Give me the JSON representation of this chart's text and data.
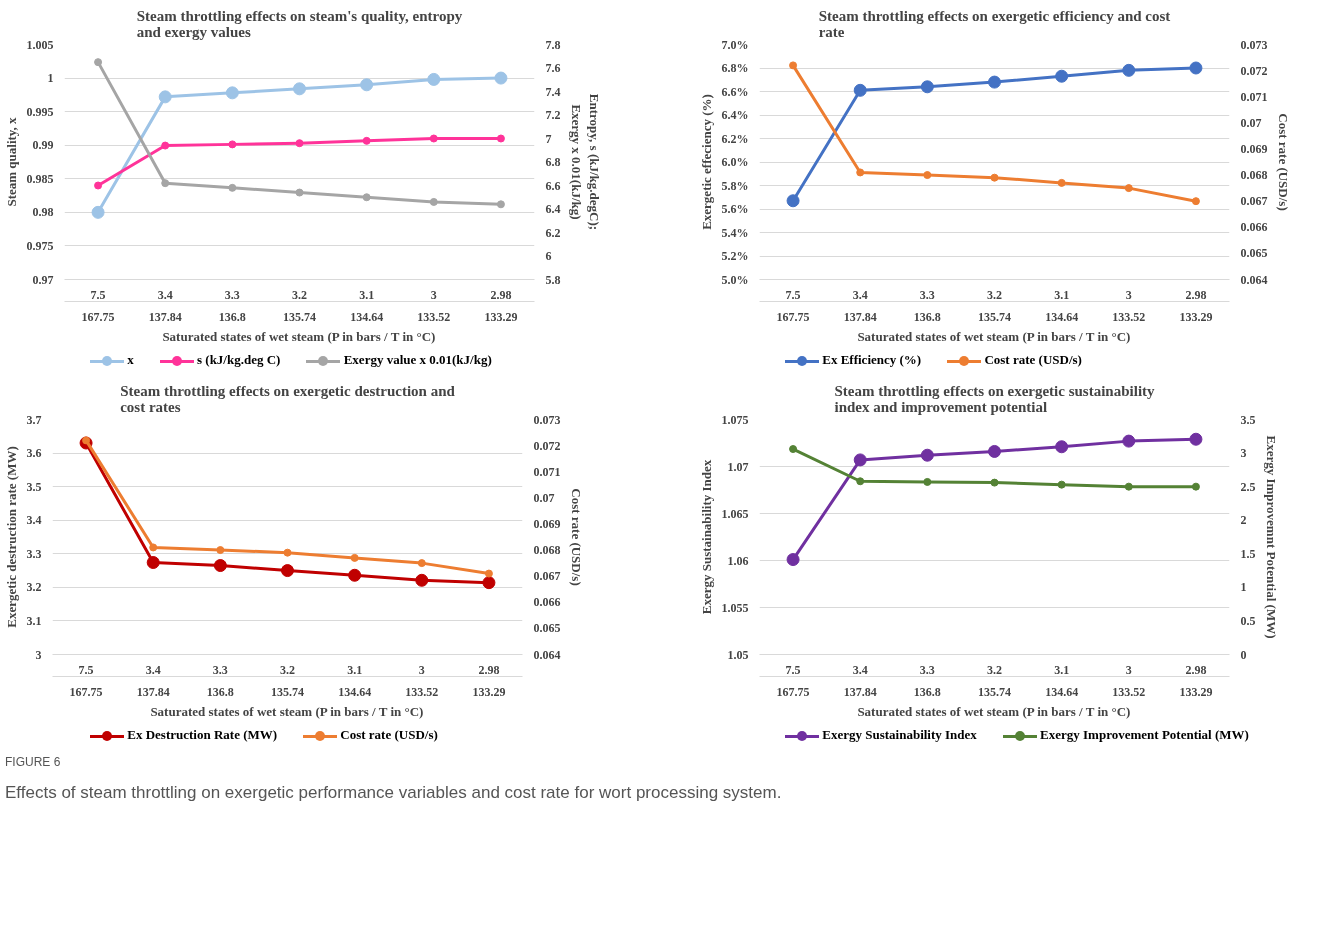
{
  "chart_data": [
    {
      "type": "line",
      "title": "Steam throttling effects on steam's quality, entropy\nand exergy values",
      "xlabel": "Saturated states of wet steam (P in bars / T in °C)",
      "ylabel": "Steam quality, x",
      "y2label": "Entropy, s (kJ/kg.degC);\nExergy x 0.01(kJ/kg)",
      "categories": [
        "7.5\n167.75",
        "3.4\n137.84",
        "3.3\n136.8",
        "3.2\n135.74",
        "3.1\n134.64",
        "3\n133.52",
        "2.98\n133.29"
      ],
      "ylim": [
        0.97,
        1.005
      ],
      "yticks": [
        0.97,
        0.975,
        0.98,
        0.985,
        0.99,
        0.995,
        1,
        1.005
      ],
      "y2lim": [
        5.8,
        7.8
      ],
      "y2ticks": [
        5.8,
        6,
        6.2,
        6.4,
        6.6,
        6.8,
        7,
        7.2,
        7.4,
        7.6,
        7.8
      ],
      "series": [
        {
          "name": "x",
          "color": "#9dc3e6",
          "values": [
            0.98,
            0.9972,
            0.9978,
            0.9984,
            0.999,
            0.9998,
            1.0
          ]
        },
        {
          "name": "s (kJ/kg.deg C)",
          "color": "#ff3399",
          "axis": "y2",
          "values": [
            6.6,
            6.94,
            6.95,
            6.96,
            6.98,
            7.0,
            7.0
          ]
        },
        {
          "name": "Exergy value x 0.01(kJ/kg)",
          "color": "#a5a5a5",
          "axis": "y2",
          "values": [
            7.65,
            6.62,
            6.58,
            6.54,
            6.5,
            6.46,
            6.44
          ]
        }
      ],
      "grid": "y",
      "legend": "bottom",
      "marker": "circle"
    },
    {
      "type": "line",
      "title": "Steam throttling effects on exergetic efficiency and cost\nrate",
      "xlabel": "Saturated states of wet steam (P in bars / T in °C)",
      "ylabel": "Exergetic effeciency (%)",
      "y2label": "Cost rate (USD/s)",
      "categories": [
        "7.5\n167.75",
        "3.4\n137.84",
        "3.3\n136.8",
        "3.2\n135.74",
        "3.1\n134.64",
        "3\n133.52",
        "2.98\n133.29"
      ],
      "ylim": [
        5.0,
        7.0
      ],
      "yticks": [
        {
          "value": 5.0,
          "label": "5.0%"
        },
        {
          "value": 5.2,
          "label": "5.2%"
        },
        {
          "value": 5.4,
          "label": "5.4%"
        },
        {
          "value": 5.6,
          "label": "5.6%"
        },
        {
          "value": 5.8,
          "label": "5.8%"
        },
        {
          "value": 6.0,
          "label": "6.0%"
        },
        {
          "value": 6.2,
          "label": "6.2%"
        },
        {
          "value": 6.4,
          "label": "6.4%"
        },
        {
          "value": 6.6,
          "label": "6.6%"
        },
        {
          "value": 6.8,
          "label": "6.8%"
        },
        {
          "value": 7.0,
          "label": "7.0%"
        }
      ],
      "y2lim": [
        0.064,
        0.073
      ],
      "y2ticks": [
        0.064,
        0.065,
        0.066,
        0.067,
        0.068,
        0.069,
        0.07,
        0.071,
        0.072,
        0.073
      ],
      "series": [
        {
          "name": "Ex Efficiency (%)",
          "color": "#4472c4",
          "values": [
            5.67,
            6.61,
            6.64,
            6.68,
            6.73,
            6.78,
            6.8
          ]
        },
        {
          "name": "Cost rate (USD/s)",
          "color": "#ed7d31",
          "axis": "y2",
          "values": [
            0.0722,
            0.0681,
            0.068,
            0.0679,
            0.0677,
            0.0675,
            0.067
          ]
        }
      ],
      "grid": "y",
      "legend": "bottom",
      "marker": "circle"
    },
    {
      "type": "line",
      "title": "Steam throttling effects on exergetic destruction and\ncost rates",
      "xlabel": "Saturated states of wet steam (P in bars / T in °C)",
      "ylabel": "Exergetic destruction rate (MW)",
      "y2label": "Cost rate (USD/s)",
      "categories": [
        "7.5\n167.75",
        "3.4\n137.84",
        "3.3\n136.8",
        "3.2\n135.74",
        "3.1\n134.64",
        "3\n133.52",
        "2.98\n133.29"
      ],
      "ylim": [
        3,
        3.7
      ],
      "yticks": [
        3,
        3.1,
        3.2,
        3.3,
        3.4,
        3.5,
        3.6,
        3.7
      ],
      "y2lim": [
        0.064,
        0.073
      ],
      "y2ticks": [
        0.064,
        0.065,
        0.066,
        0.067,
        0.068,
        0.069,
        0.07,
        0.071,
        0.072,
        0.073
      ],
      "series": [
        {
          "name": "Ex Destruction Rate (MW)",
          "color": "#c00000",
          "values": [
            3.63,
            3.274,
            3.265,
            3.25,
            3.236,
            3.221,
            3.214
          ]
        },
        {
          "name": "Cost rate (USD/s)",
          "color": "#ed7d31",
          "axis": "y2",
          "values": [
            0.0722,
            0.0681,
            0.068,
            0.0679,
            0.0677,
            0.0675,
            0.0671
          ]
        }
      ],
      "grid": "y",
      "legend": "bottom",
      "marker": "circle"
    },
    {
      "type": "line",
      "title": "Steam throttling effects on exergetic sustainability\nindex and improvement potential",
      "xlabel": "Saturated states of wet steam (P in bars / T in °C)",
      "ylabel": "Exergy Sustainability Index",
      "y2label": "Exergy Improvemnt Potential (MW)",
      "categories": [
        "7.5\n167.75",
        "3.4\n137.84",
        "3.3\n136.8",
        "3.2\n135.74",
        "3.1\n134.64",
        "3\n133.52",
        "2.98\n133.29"
      ],
      "ylim": [
        1.05,
        1.075
      ],
      "yticks": [
        1.05,
        1.055,
        1.06,
        1.065,
        1.07,
        1.075
      ],
      "y2lim": [
        0,
        3.5
      ],
      "y2ticks": [
        0,
        0.5,
        1,
        1.5,
        2,
        2.5,
        3,
        3.5
      ],
      "series": [
        {
          "name": "Exergy Sustainability Index",
          "color": "#7030a0",
          "values": [
            1.0601,
            1.0707,
            1.0712,
            1.0716,
            1.0721,
            1.0727,
            1.0729
          ]
        },
        {
          "name": "Exergy Improvement Potential (MW)",
          "color": "#548235",
          "axis": "y2",
          "values": [
            3.06,
            2.58,
            2.57,
            2.56,
            2.53,
            2.5,
            2.5
          ]
        }
      ],
      "grid": "y",
      "legend": "bottom",
      "marker": "circle",
      "annotations": [
        "FIGURE 6",
        "Effects of steam throttling on exergetic performance variables and cost rate for wort processing system."
      ]
    }
  ]
}
